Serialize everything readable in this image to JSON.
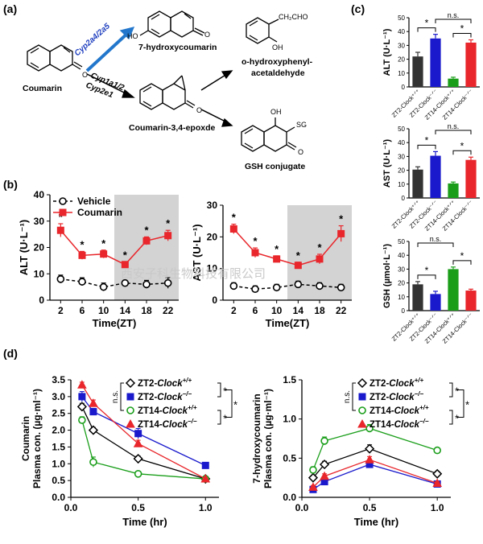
{
  "figure": {
    "panel_labels": {
      "a": "(a)",
      "b": "(b)",
      "c": "(c)",
      "d": "(d)"
    },
    "watermark": "西安子科生物科技有限公司"
  },
  "pathway": {
    "coumarin": "Coumarin",
    "enzyme_top": "Cyp2a4/2a5",
    "enzyme_mid_1": "Cyp1a1/2",
    "enzyme_mid_2": "Cyp2e1",
    "hydroxy": "7-hydroxycoumarin",
    "epoxide": "Coumarin-3,4-epoxde",
    "aldehyde_1": "o-hydroxyphenyl-",
    "aldehyde_2": "acetaldehyde",
    "aldehyde_group": "CH₂CHO",
    "gsh": "GSH conjugate",
    "oh": "OH",
    "ho": "HO",
    "sg": "SG",
    "o": "O",
    "colors": {
      "enzyme_top": "#1f3fbf",
      "arrow_top": "#2277cc"
    }
  },
  "chart_data": [
    {
      "id": "b-alt",
      "type": "line",
      "title": "",
      "xlabel": "Time(ZT)",
      "ylabel": "ALT (U·L⁻¹)",
      "x": [
        2,
        6,
        10,
        14,
        18,
        22
      ],
      "xticks": [
        "2",
        "6",
        "10",
        "14",
        "18",
        "22"
      ],
      "ylim": [
        0,
        40
      ],
      "yticks": [
        0,
        10,
        20,
        30,
        40
      ],
      "dark_phase": [
        12,
        24
      ],
      "legend": "top-left",
      "series": [
        {
          "name": "Vehicle",
          "color": "#000000",
          "marker": "open-circle",
          "dashed": true,
          "values": [
            8,
            7,
            5,
            6.5,
            6,
            6.5
          ],
          "errors": [
            1.5,
            1.5,
            1.5,
            1,
            1.5,
            2
          ]
        },
        {
          "name": "Coumarin",
          "color": "#e8262b",
          "marker": "square",
          "dashed": false,
          "values": [
            26.5,
            17,
            17.5,
            13.5,
            22.5,
            24.5
          ],
          "errors": [
            2.5,
            1.5,
            1.5,
            1,
            1.5,
            2
          ]
        }
      ],
      "significance": [
        "*",
        "*",
        "*",
        "*",
        "*",
        "*"
      ]
    },
    {
      "id": "b-ast",
      "type": "line",
      "title": "",
      "xlabel": "Time(ZT)",
      "ylabel": "AST (U·L⁻¹)",
      "x": [
        2,
        6,
        10,
        14,
        18,
        22
      ],
      "xticks": [
        "2",
        "6",
        "10",
        "14",
        "18",
        "22"
      ],
      "ylim": [
        0,
        30
      ],
      "yticks": [
        0,
        10,
        20,
        30
      ],
      "dark_phase": [
        12,
        24
      ],
      "series": [
        {
          "name": "Vehicle",
          "color": "#000000",
          "marker": "open-circle",
          "dashed": true,
          "values": [
            4.5,
            3.5,
            4,
            5,
            4.5,
            4
          ],
          "errors": [
            1,
            1,
            1,
            1,
            1,
            1
          ]
        },
        {
          "name": "Coumarin",
          "color": "#e8262b",
          "marker": "square",
          "dashed": false,
          "values": [
            22.5,
            15,
            13,
            11,
            13,
            21
          ],
          "errors": [
            1.5,
            1.5,
            1,
            1,
            1.5,
            2.5
          ]
        }
      ],
      "significance": [
        "*",
        "*",
        "*",
        "*",
        "*",
        "*"
      ]
    },
    {
      "id": "c-alt",
      "type": "bar",
      "ylabel": "ALT (U·L⁻¹)",
      "categories": [
        "ZT2-Clock⁺ᐟ⁺",
        "ZT2-Clock⁻ᐟ⁻",
        "ZT14-Clock⁺ᐟ⁺",
        "ZT14-Clock⁻ᐟ⁻"
      ],
      "values": [
        22,
        35,
        6,
        32
      ],
      "errors": [
        3,
        3,
        1,
        2
      ],
      "colors": [
        "#333333",
        "#1a1acc",
        "#1a9e1a",
        "#e8262b"
      ],
      "ylim": [
        0,
        50
      ],
      "yticks": [
        0,
        10,
        20,
        30,
        40,
        50
      ],
      "brackets": [
        {
          "from": 0,
          "to": 1,
          "label": "*"
        },
        {
          "from": 1,
          "to": 3,
          "label": "n.s."
        },
        {
          "from": 2,
          "to": 3,
          "label": "*"
        }
      ]
    },
    {
      "id": "c-ast",
      "type": "bar",
      "ylabel": "AST (U·L⁻¹)",
      "categories": [
        "ZT2-Clock⁺ᐟ⁺",
        "ZT2-Clock⁻ᐟ⁻",
        "ZT14-Clock⁺ᐟ⁺",
        "ZT14-Clock⁻ᐟ⁻"
      ],
      "values": [
        20.5,
        30.5,
        10.5,
        27.5
      ],
      "errors": [
        2,
        3,
        1,
        2
      ],
      "colors": [
        "#333333",
        "#1a1acc",
        "#1a9e1a",
        "#e8262b"
      ],
      "ylim": [
        0,
        50
      ],
      "yticks": [
        0,
        10,
        20,
        30,
        40,
        50
      ],
      "brackets": [
        {
          "from": 0,
          "to": 1,
          "label": "*"
        },
        {
          "from": 1,
          "to": 3,
          "label": "n.s."
        },
        {
          "from": 2,
          "to": 3,
          "label": "*"
        }
      ]
    },
    {
      "id": "c-gsh",
      "type": "bar",
      "ylabel": "GSH (µmol·L⁻¹)",
      "categories": [
        "ZT2-Clock⁺ᐟ⁺",
        "ZT2-Clock⁻ᐟ⁻",
        "ZT14-Clock⁺ᐟ⁺",
        "ZT14-Clock⁻ᐟ⁻"
      ],
      "values": [
        19,
        12,
        30,
        14.5
      ],
      "errors": [
        2,
        2,
        1.5,
        1
      ],
      "colors": [
        "#333333",
        "#1a1acc",
        "#1a9e1a",
        "#e8262b"
      ],
      "ylim": [
        0,
        50
      ],
      "yticks": [
        0,
        10,
        20,
        30,
        40,
        50
      ],
      "brackets": [
        {
          "from": 0,
          "to": 1,
          "label": "*"
        },
        {
          "from": 0,
          "to": 2,
          "label": "n.s."
        },
        {
          "from": 2,
          "to": 3,
          "label": "*"
        }
      ]
    },
    {
      "id": "d-coumarin",
      "type": "line",
      "xlabel": "Time (hr)",
      "ylabel_1": "Coumarin",
      "ylabel_2": "Plasma con. (µg·ml⁻¹)",
      "x": [
        0.083,
        0.167,
        0.5,
        1.0
      ],
      "xlim": [
        0,
        1.1
      ],
      "xticks": [
        0.0,
        0.5,
        1.0
      ],
      "xtick_labels": [
        "0.0",
        "0.5",
        "1.0"
      ],
      "ylim": [
        0.0,
        3.5
      ],
      "yticks": [
        0.0,
        0.5,
        1.0,
        1.5,
        2.0,
        2.5,
        3.0,
        3.5
      ],
      "ytick_labels": [
        "0.0",
        "0.5",
        "1.0",
        "1.5",
        "2.0",
        "2.5",
        "3.0",
        "3.5"
      ],
      "legend": "top-right",
      "series": [
        {
          "name": "ZT2-",
          "italic": "Clock",
          "sup": "+/+",
          "color": "#000000",
          "marker": "open-diamond",
          "values": [
            2.7,
            2.0,
            1.15,
            0.55
          ],
          "errors": [
            0.1,
            0.08,
            0.08,
            0.04
          ]
        },
        {
          "name": "ZT2-",
          "italic": "Clock",
          "sup": "−/−",
          "color": "#1a1acc",
          "marker": "square",
          "values": [
            3.0,
            2.55,
            1.9,
            0.95
          ],
          "errors": [
            0.15,
            0.1,
            0.15,
            0.05
          ]
        },
        {
          "name": "ZT14-",
          "italic": "Clock",
          "sup": "+/+",
          "color": "#1a9e1a",
          "marker": "open-circle",
          "values": [
            2.3,
            1.05,
            0.7,
            0.55
          ],
          "errors": [
            0.1,
            0.15,
            0.05,
            0.05
          ]
        },
        {
          "name": "ZT14-",
          "italic": "Clock",
          "sup": "−/−",
          "color": "#e8262b",
          "marker": "triangle",
          "values": [
            3.35,
            2.8,
            1.6,
            0.55
          ],
          "errors": [
            0.08,
            0.1,
            0.1,
            0.04
          ]
        }
      ],
      "legend_marks": {
        "ns": "n.s.",
        "star1": "*",
        "star2": "*",
        "star3": "*"
      }
    },
    {
      "id": "d-hydroxy",
      "type": "line",
      "xlabel": "Time (hr)",
      "ylabel_1": "7-hydroxycoumarin",
      "ylabel_2": "Plasma con. (µg·ml⁻¹)",
      "x": [
        0.083,
        0.167,
        0.5,
        1.0
      ],
      "xlim": [
        0,
        1.1
      ],
      "xticks": [
        0.0,
        0.5,
        1.0
      ],
      "xtick_labels": [
        "0.0",
        "0.5",
        "1.0"
      ],
      "ylim": [
        0.0,
        1.5
      ],
      "yticks": [
        0.0,
        0.5,
        1.0,
        1.5
      ],
      "ytick_labels": [
        "0.0",
        "0.5",
        "1.0",
        "1.5"
      ],
      "legend": "top-right",
      "series": [
        {
          "name": "ZT2-",
          "italic": "Clock",
          "sup": "+/+",
          "color": "#000000",
          "marker": "open-diamond",
          "values": [
            0.25,
            0.42,
            0.62,
            0.3
          ],
          "errors": [
            0.03,
            0.04,
            0.05,
            0.03
          ]
        },
        {
          "name": "ZT2-",
          "italic": "Clock",
          "sup": "−/−",
          "color": "#1a1acc",
          "marker": "square",
          "values": [
            0.1,
            0.2,
            0.42,
            0.17
          ],
          "errors": [
            0.02,
            0.03,
            0.04,
            0.02
          ]
        },
        {
          "name": "ZT14-",
          "italic": "Clock",
          "sup": "+/+",
          "color": "#1a9e1a",
          "marker": "open-circle",
          "values": [
            0.35,
            0.72,
            0.88,
            0.6
          ],
          "errors": [
            0.04,
            0.05,
            0.05,
            0.03
          ]
        },
        {
          "name": "ZT14-",
          "italic": "Clock",
          "sup": "−/−",
          "color": "#e8262b",
          "marker": "triangle",
          "values": [
            0.13,
            0.27,
            0.48,
            0.18
          ],
          "errors": [
            0.02,
            0.03,
            0.04,
            0.02
          ]
        }
      ],
      "legend_marks": {
        "ns": "n.s.",
        "star1": "*",
        "star2": "*",
        "star3": "*"
      }
    }
  ]
}
